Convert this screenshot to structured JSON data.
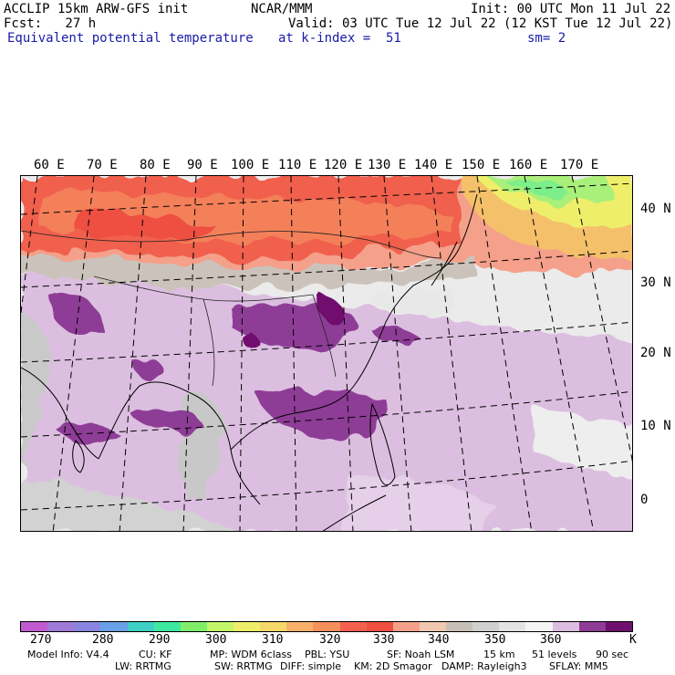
{
  "header": {
    "line1_left": "ACCLIP 15km ARW-GFS init",
    "line1_mid": "NCAR/MMM",
    "line1_right": "Init: 00 UTC Mon 11 Jul 22",
    "line2_left": "Fcst:   27 h",
    "line2_right": "Valid: 03 UTC Tue 12 Jul 22 (12 KST Tue 12 Jul 22)",
    "line3_field": "Equivalent potential temperature",
    "line3_level": "at k-index =  51",
    "line3_smooth": "sm= 2"
  },
  "map": {
    "lon_labels": [
      "60 E",
      "70 E",
      "80 E",
      "90 E",
      "100 E",
      "110 E",
      "120 E",
      "130 E",
      "140 E",
      "150 E",
      "160 E",
      "170 E"
    ],
    "lat_labels": [
      "40 N",
      "30 N",
      "20 N",
      "10 N",
      "0"
    ]
  },
  "colorbar": {
    "unit": "K",
    "tick_labels": [
      "270",
      "280",
      "290",
      "300",
      "310",
      "320",
      "330",
      "340",
      "350",
      "360"
    ],
    "colors": [
      "#c25ad2",
      "#a07ad8",
      "#8a86e0",
      "#6aa0e6",
      "#3ecfc4",
      "#3ee8a0",
      "#80ee6a",
      "#c2f66a",
      "#eeee6a",
      "#f6d86a",
      "#f6b06a",
      "#f6905a",
      "#f4604e",
      "#f05040",
      "#f4a08a",
      "#f0c8b0",
      "#c8c0b8",
      "#d0d0d0",
      "#e4e4e4",
      "#f4f4f4",
      "#ddbde0",
      "#8e3c96",
      "#70106e"
    ]
  },
  "footer": {
    "line1": [
      "Model Info: V4.4",
      "CU: KF",
      "MP: WDM 6class",
      "PBL: YSU",
      "SF: Noah LSM",
      "15 km",
      "51 levels",
      "90 sec"
    ],
    "line2": [
      "LW: RRTMG",
      "SW: RRTMG",
      "DIFF: simple",
      "KM: 2D Smagor",
      "DAMP: Rayleigh3",
      "SFLAY: MM5"
    ]
  }
}
